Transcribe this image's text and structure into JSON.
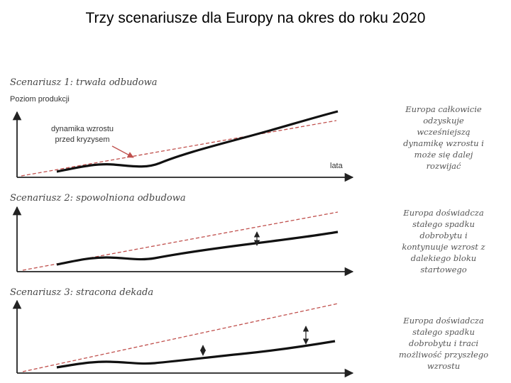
{
  "title": "Trzy scenariusze dla Europy na okres do roku 2020",
  "scenarios": [
    {
      "title": "Scenariusz 1: trwała odbudowa",
      "ylabel": "Poziom produkcji",
      "annotation": [
        "dynamika wzrostu",
        "przed kryzysem"
      ],
      "xlabel": "lata",
      "note": [
        "Europa całkowicie",
        "odzyskuje",
        "wcześniejszą",
        "dynamikę wzrostu i",
        "może się dalej",
        "rozwijać"
      ]
    },
    {
      "title": "Scenariusz 2: spowolniona odbudowa",
      "note": [
        "Europa doświadcza",
        "stałego spadku",
        "dobrobytu i",
        "kontynuuje wzrost z",
        "dalekiego bloku",
        "startowego"
      ]
    },
    {
      "title": "Scenariusz 3: stracona dekada",
      "note": [
        "Europa doświadcza",
        "stałego spadku",
        "dobrobytu i traci",
        "możliwość przyszłego",
        "wzrostu"
      ]
    }
  ],
  "colors": {
    "trend_line": "#c0504d",
    "output_line": "#111111",
    "axis": "#222222"
  }
}
